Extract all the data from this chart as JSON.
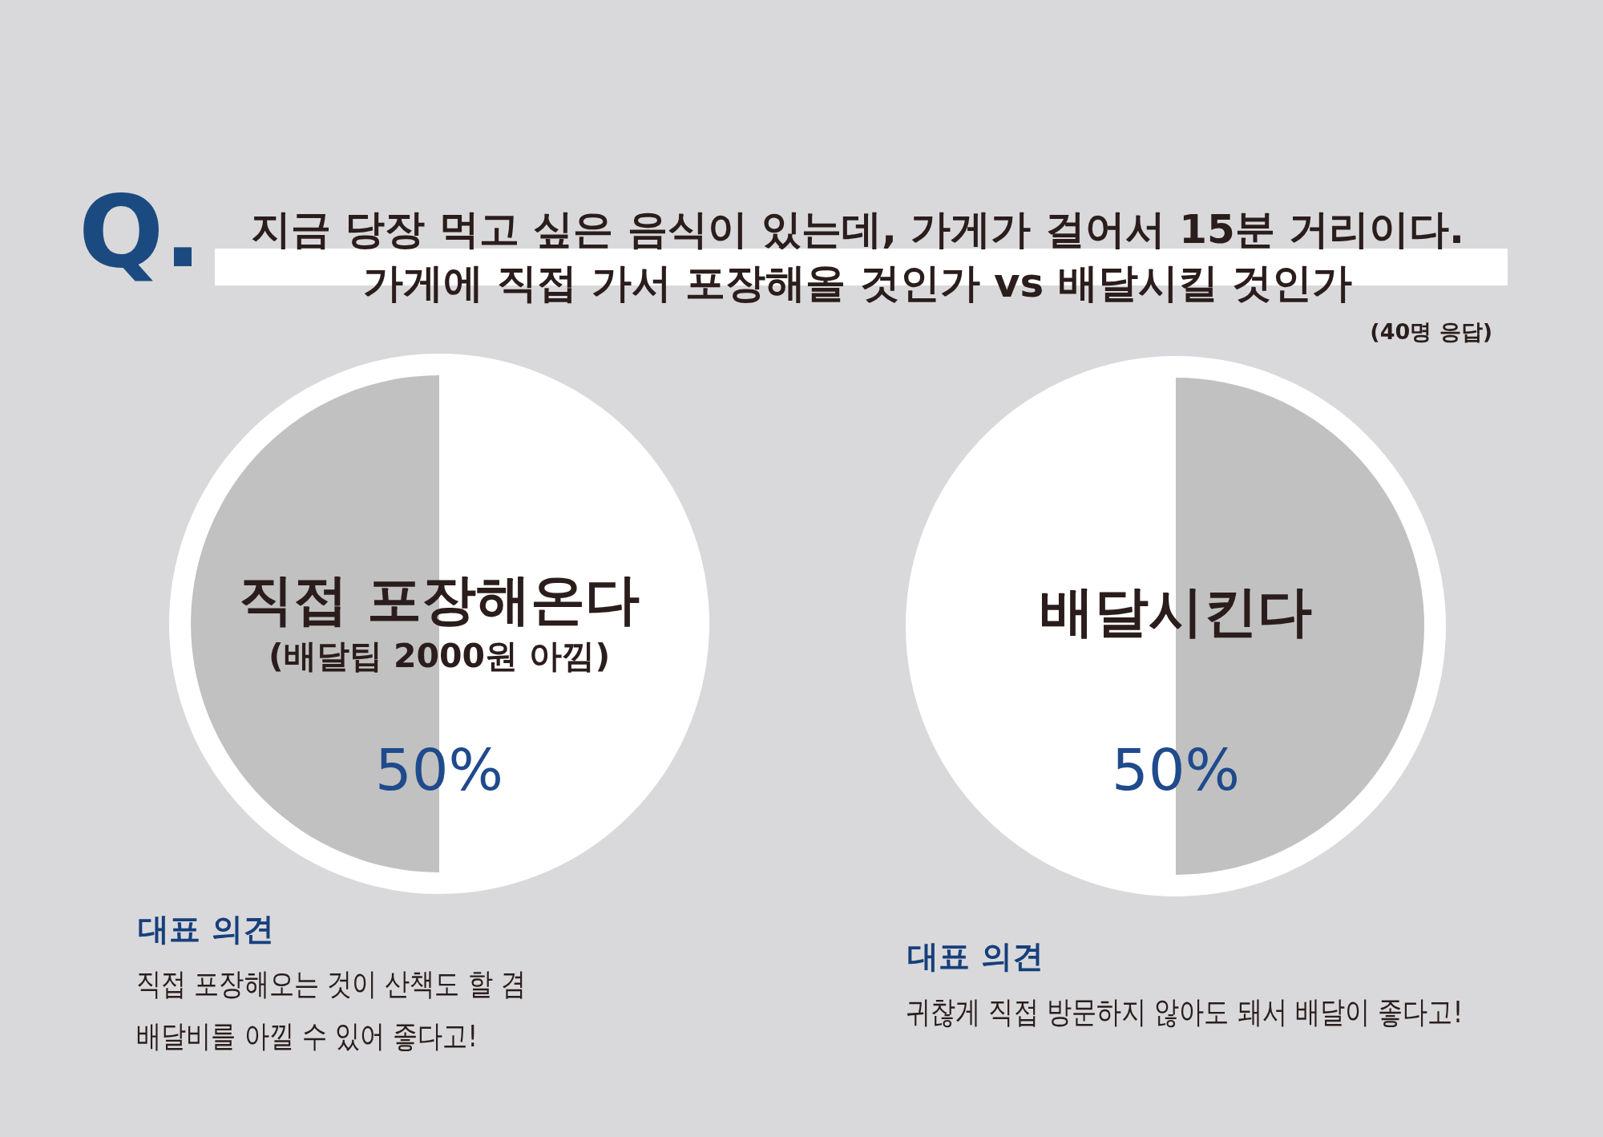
{
  "chart_data": [
    {
      "type": "other",
      "title": "지금 당장 먹고 싶은 음식이 있는데, 가게가 걸어서 15분 거리이다.\n가게에 직접 가서 포장해올 것인가 vs 배달시킬 것인가",
      "subtitle": "(40명 응답)",
      "annotations": [
        "Q."
      ]
    },
    {
      "type": "pie",
      "categories": [
        null,
        "직접 포장해온다\n(배달팁 2000원 아낌)"
      ],
      "values": [
        50,
        50
      ],
      "colors": [
        "#ffffff",
        "#c1c1c1"
      ],
      "value_labels": [
        null,
        "50%"
      ],
      "annotations": [
        "대표 의견",
        "직접 포장해오는 것이 산책도 할 겸\n배달비를 아낄 수 있어 좋다고!"
      ]
    },
    {
      "type": "pie",
      "categories": [
        "배달시킨다",
        null
      ],
      "values": [
        50,
        50
      ],
      "colors": [
        "#c1c1c1",
        "#ffffff"
      ],
      "value_labels": [
        "50%",
        null
      ],
      "annotations": [
        "대표 의견",
        "귀찮게 직접 방문하지 않아도 돼서 배달이 좋다고!"
      ]
    }
  ]
}
